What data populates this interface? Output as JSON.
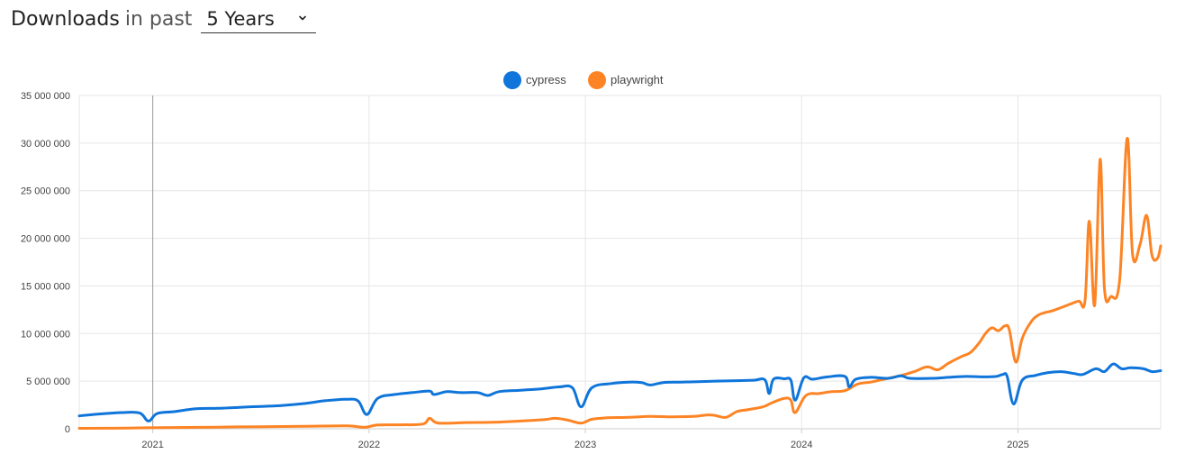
{
  "header": {
    "title": "Downloads",
    "connector": "in past",
    "period_selected": "5 Years"
  },
  "colors": {
    "cypress": "#0f75da",
    "playwright": "#fd8424",
    "grid": "#e6e6e6",
    "axis": "#cccccc",
    "marker": "#999999"
  },
  "chart_data": {
    "type": "line",
    "ylim": [
      0,
      35000000
    ],
    "yticks": [
      0,
      5000000,
      10000000,
      15000000,
      20000000,
      25000000,
      30000000,
      35000000
    ],
    "ytick_labels": [
      "0",
      "5 000 000",
      "10 000 000",
      "15 000 000",
      "20 000 000",
      "25 000 000",
      "30 000 000",
      "35 000 000"
    ],
    "xlim": [
      2020.66,
      2025.66
    ],
    "xticks": [
      2021,
      2022,
      2023,
      2024,
      2025
    ],
    "xtick_labels": [
      "2021",
      "2022",
      "2023",
      "2024",
      "2025"
    ],
    "marker_x": 2021,
    "legend": "top-center",
    "series": [
      {
        "name": "cypress",
        "color_key": "cypress",
        "points": [
          [
            2020.66,
            1350000
          ],
          [
            2020.7,
            1450000
          ],
          [
            2020.78,
            1600000
          ],
          [
            2020.86,
            1700000
          ],
          [
            2020.94,
            1650000
          ],
          [
            2020.98,
            800000
          ],
          [
            2021.02,
            1600000
          ],
          [
            2021.1,
            1800000
          ],
          [
            2021.2,
            2100000
          ],
          [
            2021.3,
            2150000
          ],
          [
            2021.4,
            2250000
          ],
          [
            2021.5,
            2350000
          ],
          [
            2021.6,
            2450000
          ],
          [
            2021.7,
            2650000
          ],
          [
            2021.8,
            2950000
          ],
          [
            2021.9,
            3100000
          ],
          [
            2021.95,
            2900000
          ],
          [
            2021.99,
            1500000
          ],
          [
            2022.04,
            3200000
          ],
          [
            2022.12,
            3600000
          ],
          [
            2022.2,
            3800000
          ],
          [
            2022.28,
            3950000
          ],
          [
            2022.3,
            3600000
          ],
          [
            2022.36,
            3900000
          ],
          [
            2022.42,
            3800000
          ],
          [
            2022.5,
            3800000
          ],
          [
            2022.55,
            3500000
          ],
          [
            2022.6,
            3900000
          ],
          [
            2022.7,
            4050000
          ],
          [
            2022.8,
            4200000
          ],
          [
            2022.88,
            4400000
          ],
          [
            2022.94,
            4300000
          ],
          [
            2022.98,
            2300000
          ],
          [
            2023.03,
            4300000
          ],
          [
            2023.12,
            4750000
          ],
          [
            2023.2,
            4900000
          ],
          [
            2023.26,
            4850000
          ],
          [
            2023.3,
            4600000
          ],
          [
            2023.36,
            4850000
          ],
          [
            2023.44,
            4900000
          ],
          [
            2023.52,
            4950000
          ],
          [
            2023.6,
            5000000
          ],
          [
            2023.7,
            5050000
          ],
          [
            2023.78,
            5100000
          ],
          [
            2023.83,
            5150000
          ],
          [
            2023.85,
            3700000
          ],
          [
            2023.87,
            5200000
          ],
          [
            2023.92,
            5250000
          ],
          [
            2023.95,
            5100000
          ],
          [
            2023.97,
            3000000
          ],
          [
            2024.01,
            5350000
          ],
          [
            2024.05,
            5200000
          ],
          [
            2024.12,
            5450000
          ],
          [
            2024.2,
            5500000
          ],
          [
            2024.22,
            4400000
          ],
          [
            2024.25,
            5200000
          ],
          [
            2024.32,
            5400000
          ],
          [
            2024.4,
            5300000
          ],
          [
            2024.46,
            5550000
          ],
          [
            2024.5,
            5300000
          ],
          [
            2024.6,
            5300000
          ],
          [
            2024.68,
            5400000
          ],
          [
            2024.76,
            5500000
          ],
          [
            2024.84,
            5450000
          ],
          [
            2024.9,
            5500000
          ],
          [
            2024.93,
            5700000
          ],
          [
            2024.95,
            5500000
          ],
          [
            2024.98,
            2600000
          ],
          [
            2025.02,
            5100000
          ],
          [
            2025.08,
            5600000
          ],
          [
            2025.14,
            5900000
          ],
          [
            2025.2,
            6000000
          ],
          [
            2025.26,
            5800000
          ],
          [
            2025.3,
            5700000
          ],
          [
            2025.36,
            6300000
          ],
          [
            2025.4,
            6000000
          ],
          [
            2025.44,
            6800000
          ],
          [
            2025.48,
            6300000
          ],
          [
            2025.52,
            6400000
          ],
          [
            2025.58,
            6300000
          ],
          [
            2025.62,
            6000000
          ],
          [
            2025.66,
            6100000
          ]
        ]
      },
      {
        "name": "playwright",
        "color_key": "playwright",
        "points": [
          [
            2020.66,
            50000
          ],
          [
            2020.8,
            60000
          ],
          [
            2020.98,
            100000
          ],
          [
            2021.1,
            130000
          ],
          [
            2021.3,
            170000
          ],
          [
            2021.5,
            220000
          ],
          [
            2021.7,
            260000
          ],
          [
            2021.9,
            300000
          ],
          [
            2021.98,
            150000
          ],
          [
            2022.04,
            400000
          ],
          [
            2022.15,
            420000
          ],
          [
            2022.25,
            500000
          ],
          [
            2022.28,
            1100000
          ],
          [
            2022.32,
            600000
          ],
          [
            2022.45,
            650000
          ],
          [
            2022.6,
            700000
          ],
          [
            2022.8,
            950000
          ],
          [
            2022.86,
            1100000
          ],
          [
            2022.92,
            900000
          ],
          [
            2022.98,
            600000
          ],
          [
            2023.03,
            1000000
          ],
          [
            2023.1,
            1150000
          ],
          [
            2023.2,
            1200000
          ],
          [
            2023.3,
            1300000
          ],
          [
            2023.4,
            1250000
          ],
          [
            2023.5,
            1300000
          ],
          [
            2023.56,
            1450000
          ],
          [
            2023.6,
            1400000
          ],
          [
            2023.65,
            1200000
          ],
          [
            2023.7,
            1800000
          ],
          [
            2023.75,
            2000000
          ],
          [
            2023.82,
            2300000
          ],
          [
            2023.86,
            2700000
          ],
          [
            2023.92,
            3200000
          ],
          [
            2023.95,
            3000000
          ],
          [
            2023.97,
            1700000
          ],
          [
            2024.02,
            3500000
          ],
          [
            2024.08,
            3700000
          ],
          [
            2024.14,
            3900000
          ],
          [
            2024.2,
            4000000
          ],
          [
            2024.26,
            4700000
          ],
          [
            2024.32,
            4900000
          ],
          [
            2024.4,
            5300000
          ],
          [
            2024.46,
            5600000
          ],
          [
            2024.52,
            6000000
          ],
          [
            2024.58,
            6500000
          ],
          [
            2024.63,
            6200000
          ],
          [
            2024.68,
            6900000
          ],
          [
            2024.74,
            7600000
          ],
          [
            2024.78,
            8000000
          ],
          [
            2024.82,
            9000000
          ],
          [
            2024.85,
            10000000
          ],
          [
            2024.88,
            10600000
          ],
          [
            2024.91,
            10300000
          ],
          [
            2024.94,
            10800000
          ],
          [
            2024.96,
            10400000
          ],
          [
            2024.99,
            7000000
          ],
          [
            2025.02,
            9500000
          ],
          [
            2025.06,
            11200000
          ],
          [
            2025.1,
            12000000
          ],
          [
            2025.16,
            12400000
          ],
          [
            2025.22,
            12900000
          ],
          [
            2025.28,
            13400000
          ],
          [
            2025.31,
            13400000
          ],
          [
            2025.33,
            21800000
          ],
          [
            2025.355,
            13000000
          ],
          [
            2025.38,
            28300000
          ],
          [
            2025.4,
            14800000
          ],
          [
            2025.43,
            13900000
          ],
          [
            2025.47,
            15600000
          ],
          [
            2025.505,
            30500000
          ],
          [
            2025.53,
            18300000
          ],
          [
            2025.565,
            19400000
          ],
          [
            2025.595,
            22400000
          ],
          [
            2025.62,
            18200000
          ],
          [
            2025.645,
            17900000
          ],
          [
            2025.66,
            19200000
          ]
        ]
      }
    ]
  }
}
